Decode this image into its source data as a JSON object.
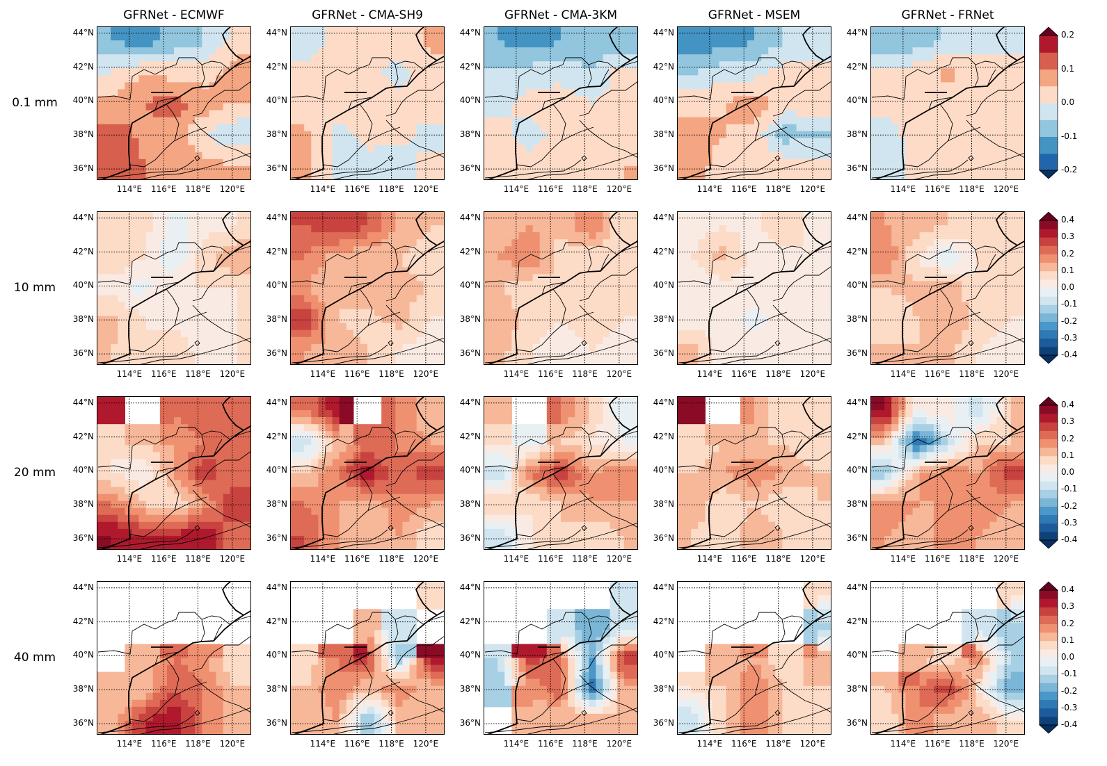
{
  "chart_data": {
    "type": "heatmap",
    "columns": [
      "GFRNet - ECMWF",
      "GFRNet - CMA-SH9",
      "GFRNet - CMA-3KM",
      "GFRNet - MSEM",
      "GFRNet - FRNet"
    ],
    "rows": [
      {
        "label": "0.1 mm",
        "vmin": -0.2,
        "vmax": 0.2,
        "step": 0.05,
        "ticks": [
          "0.2",
          "0.1",
          "0.0",
          "-0.1",
          "-0.2"
        ]
      },
      {
        "label": "10 mm",
        "vmin": -0.4,
        "vmax": 0.4,
        "step": 0.05,
        "ticks": [
          "0.4",
          "0.3",
          "0.2",
          "0.1",
          "0.0",
          "-0.1",
          "-0.2",
          "-0.3",
          "-0.4"
        ]
      },
      {
        "label": "20 mm",
        "vmin": -0.4,
        "vmax": 0.4,
        "step": 0.05,
        "ticks": [
          "0.4",
          "0.3",
          "0.2",
          "0.1",
          "0.0",
          "-0.1",
          "-0.2",
          "-0.3",
          "-0.4"
        ]
      },
      {
        "label": "40 mm",
        "vmin": -0.4,
        "vmax": 0.4,
        "step": 0.05,
        "ticks": [
          "0.4",
          "0.3",
          "0.2",
          "0.1",
          "0.0",
          "-0.1",
          "-0.2",
          "-0.3",
          "-0.4"
        ]
      }
    ],
    "lon_range": [
      112.1,
      121.1
    ],
    "lat_range": [
      35.35,
      44.4
    ],
    "lon_ticks": [
      {
        "v": 114,
        "label": "114°E"
      },
      {
        "v": 116,
        "label": "116°E"
      },
      {
        "v": 118,
        "label": "118°E"
      },
      {
        "v": 120,
        "label": "120°E"
      }
    ],
    "lat_ticks": [
      {
        "v": 44,
        "label": "44°N"
      },
      {
        "v": 42,
        "label": "42°N"
      },
      {
        "v": 40,
        "label": "40°N"
      },
      {
        "v": 38,
        "label": "38°N"
      },
      {
        "v": 36,
        "label": "36°N"
      }
    ],
    "grid": true,
    "grid_note": "values on 5x5 grid, rows north to south, cols west to east; null = masked",
    "panels": [
      [
        [
          [
            -0.1,
            -0.12,
            -0.08,
            -0.05,
            0.02
          ],
          [
            0.0,
            0.05,
            0.03,
            0.02,
            0.08
          ],
          [
            0.07,
            0.1,
            0.12,
            0.08,
            0.05
          ],
          [
            0.12,
            0.09,
            0.08,
            0.0,
            -0.04
          ],
          [
            0.13,
            0.1,
            0.09,
            0.06,
            0.05
          ]
        ],
        [
          [
            -0.04,
            0.03,
            0.03,
            0.02,
            0.06
          ],
          [
            0.03,
            0.02,
            0.02,
            -0.02,
            0.03
          ],
          [
            0.02,
            0.03,
            0.03,
            0.02,
            0.03
          ],
          [
            0.06,
            -0.02,
            0.02,
            0.02,
            -0.02
          ],
          [
            0.06,
            -0.02,
            -0.02,
            -0.03,
            0.02
          ]
        ],
        [
          [
            -0.1,
            -0.12,
            -0.1,
            -0.1,
            -0.08
          ],
          [
            -0.04,
            -0.03,
            -0.02,
            -0.04,
            0.02
          ],
          [
            -0.02,
            0.02,
            0.03,
            0.0,
            0.03
          ],
          [
            0.02,
            -0.02,
            0.02,
            0.02,
            0.04
          ],
          [
            0.03,
            0.02,
            0.02,
            0.02,
            0.05
          ]
        ],
        [
          [
            -0.15,
            -0.12,
            -0.1,
            -0.05,
            -0.04
          ],
          [
            -0.05,
            -0.02,
            -0.02,
            0.02,
            0.03
          ],
          [
            0.03,
            0.05,
            0.08,
            0.03,
            0.05
          ],
          [
            0.08,
            0.05,
            0.03,
            -0.08,
            -0.06
          ],
          [
            0.07,
            0.03,
            0.02,
            0.03,
            0.02
          ]
        ],
        [
          [
            -0.1,
            -0.08,
            -0.04,
            -0.02,
            -0.02
          ],
          [
            0.02,
            0.03,
            0.06,
            0.03,
            0.04
          ],
          [
            0.02,
            0.03,
            0.03,
            0.02,
            0.04
          ],
          [
            -0.02,
            0.02,
            0.03,
            0.02,
            0.02
          ],
          [
            -0.04,
            0.02,
            0.03,
            0.02,
            0.03
          ]
        ]
      ],
      [
        [
          [
            0.05,
            0.08,
            -0.03,
            0.03,
            0.05
          ],
          [
            0.1,
            0.05,
            -0.05,
            0.08,
            0.15
          ],
          [
            0.02,
            -0.02,
            0.05,
            0.05,
            0.05
          ],
          [
            0.12,
            0.05,
            0.03,
            0.02,
            0.05
          ],
          [
            0.1,
            0.05,
            0.08,
            0.03,
            0.05
          ]
        ],
        [
          [
            0.25,
            0.3,
            0.25,
            0.15,
            0.1
          ],
          [
            0.2,
            0.12,
            0.1,
            0.1,
            0.08
          ],
          [
            0.15,
            0.1,
            0.15,
            0.12,
            0.1
          ],
          [
            0.3,
            0.1,
            0.08,
            0.12,
            0.05
          ],
          [
            0.15,
            0.12,
            0.1,
            0.05,
            0.03
          ]
        ],
        [
          [
            0.1,
            0.15,
            0.1,
            0.2,
            0.05
          ],
          [
            0.15,
            0.2,
            0.08,
            0.05,
            0.08
          ],
          [
            0.1,
            0.05,
            0.1,
            0.1,
            0.05
          ],
          [
            0.15,
            0.08,
            0.05,
            0.08,
            0.05
          ],
          [
            0.12,
            0.05,
            0.03,
            0.05,
            0.03
          ]
        ],
        [
          [
            0.03,
            0.05,
            0.03,
            0.1,
            0.02
          ],
          [
            0.05,
            0.12,
            0.02,
            0.03,
            0.05
          ],
          [
            0.02,
            0.02,
            0.05,
            0.05,
            0.03
          ],
          [
            0.02,
            0.02,
            -0.02,
            0.02,
            0.02
          ],
          [
            0.12,
            0.02,
            0.02,
            0.03,
            0.02
          ]
        ],
        [
          [
            0.15,
            0.12,
            0.1,
            0.08,
            0.05
          ],
          [
            0.2,
            0.05,
            -0.05,
            0.05,
            0.05
          ],
          [
            0.1,
            0.12,
            0.15,
            0.05,
            0.05
          ],
          [
            0.05,
            0.1,
            0.15,
            0.08,
            0.05
          ],
          [
            0.12,
            0.1,
            0.12,
            0.05,
            0.02
          ]
        ]
      ],
      [
        [
          [
            0.3,
            null,
            0.2,
            0.25,
            0.2
          ],
          [
            0.05,
            0.1,
            0.15,
            0.2,
            0.25
          ],
          [
            0.05,
            0.0,
            0.15,
            0.3,
            0.2
          ],
          [
            0.2,
            0.1,
            0.05,
            0.15,
            0.3
          ],
          [
            0.35,
            0.3,
            0.3,
            0.35,
            0.2
          ]
        ],
        [
          [
            0.2,
            0.35,
            null,
            0.2,
            0.1
          ],
          [
            -0.1,
            0.1,
            0.2,
            0.2,
            0.15
          ],
          [
            0.1,
            0.2,
            0.35,
            0.2,
            0.3
          ],
          [
            0.2,
            0.15,
            0.1,
            0.2,
            0.15
          ],
          [
            0.25,
            0.15,
            0.1,
            0.15,
            0.05
          ]
        ],
        [
          [
            0.1,
            null,
            0.2,
            0.1,
            -0.05
          ],
          [
            0.05,
            -0.05,
            0.1,
            0.05,
            0.0
          ],
          [
            -0.1,
            0.2,
            0.3,
            0.15,
            0.2
          ],
          [
            0.1,
            0.05,
            0.1,
            0.15,
            0.15
          ],
          [
            -0.1,
            0.05,
            0.1,
            0.05,
            0.1
          ]
        ],
        [
          [
            0.35,
            null,
            0.15,
            0.05,
            0.05
          ],
          [
            0.05,
            0.1,
            0.1,
            0.1,
            0.05
          ],
          [
            0.1,
            0.15,
            0.2,
            0.15,
            0.1
          ],
          [
            0.15,
            0.05,
            0.1,
            0.05,
            0.1
          ],
          [
            0.1,
            0.05,
            0.15,
            0.1,
            0.05
          ]
        ],
        [
          [
            0.35,
            0.0,
            0.05,
            -0.1,
            0.1
          ],
          [
            0.1,
            -0.3,
            -0.1,
            0.1,
            0.1
          ],
          [
            -0.15,
            0.15,
            0.2,
            0.15,
            0.3
          ],
          [
            0.2,
            0.15,
            0.15,
            0.2,
            0.15
          ],
          [
            0.15,
            0.1,
            0.2,
            0.15,
            0.1
          ]
        ]
      ],
      [
        [
          [
            null,
            null,
            null,
            null,
            null
          ],
          [
            null,
            null,
            null,
            null,
            null
          ],
          [
            null,
            0.1,
            0.2,
            0.15,
            0.05
          ],
          [
            0.1,
            0.1,
            0.25,
            0.2,
            0.1
          ],
          [
            0.1,
            0.3,
            0.35,
            0.2,
            0.1
          ]
        ],
        [
          [
            null,
            null,
            null,
            null,
            0.05
          ],
          [
            null,
            null,
            0.1,
            -0.1,
            null
          ],
          [
            0.05,
            0.2,
            0.3,
            -0.15,
            0.35
          ],
          [
            0.1,
            0.2,
            0.1,
            0.2,
            0.1
          ],
          [
            0.1,
            0.15,
            -0.15,
            0.1,
            0.1
          ]
        ],
        [
          [
            null,
            null,
            null,
            null,
            -0.1
          ],
          [
            null,
            null,
            -0.1,
            -0.2,
            -0.1
          ],
          [
            -0.1,
            0.3,
            0.2,
            -0.2,
            0.3
          ],
          [
            -0.15,
            0.15,
            0.25,
            -0.3,
            0.15
          ],
          [
            null,
            0.1,
            0.1,
            0.15,
            0.1
          ]
        ],
        [
          [
            null,
            null,
            null,
            null,
            0.05
          ],
          [
            null,
            null,
            null,
            null,
            -0.15
          ],
          [
            null,
            0.1,
            0.15,
            0.05,
            0.15
          ],
          [
            0.05,
            0.1,
            0.2,
            0.1,
            0.1
          ],
          [
            -0.1,
            0.1,
            0.2,
            0.1,
            0.05
          ]
        ],
        [
          [
            null,
            null,
            null,
            null,
            0.05
          ],
          [
            null,
            null,
            null,
            -0.1,
            -0.15
          ],
          [
            null,
            0.1,
            0.05,
            0.2,
            -0.1
          ],
          [
            0.1,
            0.2,
            0.3,
            0.05,
            -0.2
          ],
          [
            0.05,
            0.2,
            0.1,
            0.15,
            0.05
          ]
        ]
      ]
    ],
    "colors": {
      "scale8": [
        "#2166ac",
        "#4393c3",
        "#92c5de",
        "#d1e5f0",
        "#fddbc7",
        "#f4a582",
        "#d6604d",
        "#b2182b"
      ],
      "scale16": [
        "#0e4179",
        "#1c5c9d",
        "#2f79b5",
        "#4a98c9",
        "#7bb6d6",
        "#a8d0e4",
        "#d1e5f0",
        "#e9f0f4",
        "#f9ebe3",
        "#fcdbc7",
        "#f7b799",
        "#ef9171",
        "#de6b56",
        "#c8433f",
        "#b0192d",
        "#8a0b25"
      ],
      "under": "#053061",
      "over": "#67001f"
    }
  }
}
